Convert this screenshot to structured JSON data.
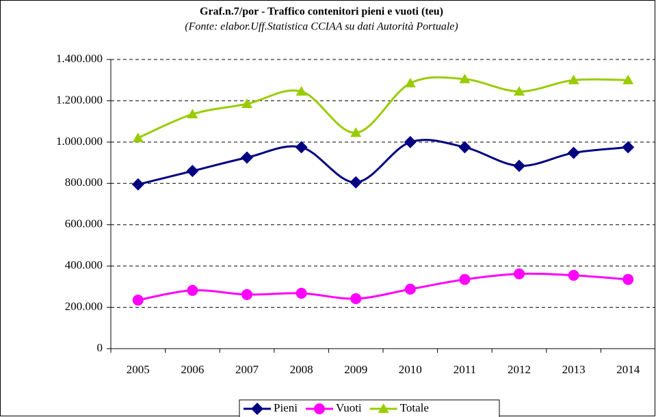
{
  "chart_data": {
    "type": "line",
    "title": "Graf.n.7/por - Traffico contenitori pieni e vuoti (teu)",
    "subtitle": "(Fonte: elabor.Uff.Statistica CCIAA su dati Autorità Portuale)",
    "categories": [
      "2005",
      "2006",
      "2007",
      "2008",
      "2009",
      "2010",
      "2011",
      "2012",
      "2013",
      "2014"
    ],
    "series": [
      {
        "name": "Pieni",
        "color": "#000080",
        "marker": "diamond",
        "values": [
          795000,
          860000,
          925000,
          975000,
          805000,
          1000000,
          975000,
          885000,
          948000,
          975000
        ]
      },
      {
        "name": "Vuoti",
        "color": "#ff00ff",
        "marker": "circle",
        "values": [
          235000,
          282000,
          262000,
          268000,
          242000,
          288000,
          335000,
          362000,
          355000,
          335000
        ]
      },
      {
        "name": "Totale",
        "color": "#99cc00",
        "marker": "triangle",
        "values": [
          1020000,
          1135000,
          1185000,
          1245000,
          1045000,
          1285000,
          1305000,
          1245000,
          1300000,
          1300000
        ]
      }
    ],
    "ylim": [
      0,
      1400000
    ],
    "yticks": [
      0,
      {
        "value": 200000,
        "label": "200.000"
      },
      {
        "value": 400000,
        "label": "400.000"
      },
      {
        "value": 600000,
        "label": "600.000"
      },
      {
        "value": 800000,
        "label": "800.000"
      },
      {
        "value": 1000000,
        "label": "1.000.000"
      },
      {
        "value": 1200000,
        "label": "1.200.000"
      },
      {
        "value": 1400000,
        "label": "1.400.000"
      }
    ],
    "grid": true,
    "legend": "bottom"
  }
}
